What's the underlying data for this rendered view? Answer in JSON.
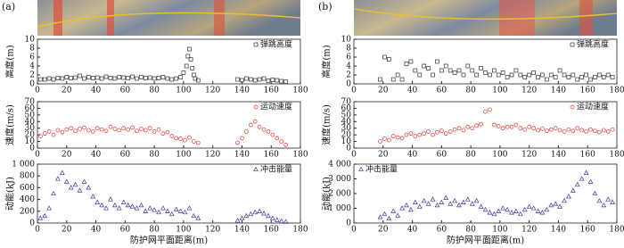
{
  "chart_data": [
    {
      "type": "scatter",
      "panel_label": "(a)",
      "ylabel": "高度(m)",
      "xlim": [
        0,
        180
      ],
      "xticks": [
        0,
        20,
        40,
        60,
        80,
        100,
        120,
        140,
        160,
        180
      ],
      "ylim": [
        0,
        10
      ],
      "yticks": [
        0,
        2,
        4,
        6,
        8,
        10
      ],
      "legend": "upper right",
      "series": [
        {
          "name": "弹跳高度",
          "color": "#333333",
          "marker": "square",
          "x": [
            2,
            5,
            8,
            11,
            14,
            17,
            20,
            23,
            26,
            29,
            32,
            35,
            38,
            41,
            44,
            47,
            50,
            53,
            56,
            59,
            62,
            65,
            68,
            71,
            74,
            77,
            80,
            83,
            86,
            89,
            92,
            95,
            98,
            100,
            102,
            103,
            104,
            105,
            106,
            107,
            108,
            110,
            137,
            140,
            143,
            146,
            149,
            152,
            155,
            158,
            161,
            164,
            167,
            170
          ],
          "y": [
            1,
            1,
            1.2,
            1,
            1.3,
            1.2,
            1.5,
            1.3,
            1.4,
            1.8,
            1.2,
            1.5,
            1.3,
            1.4,
            1.2,
            1.6,
            1.3,
            1.2,
            1.5,
            1.4,
            1.3,
            1.6,
            1.2,
            1.5,
            1.3,
            1.4,
            1.2,
            1.3,
            1.5,
            1.2,
            1.0,
            1.2,
            1.5,
            2.5,
            4,
            6.2,
            7.8,
            5.5,
            3.5,
            2,
            1.2,
            0.8,
            1,
            0.8,
            1.2,
            1,
            0.8,
            1,
            1.2,
            0.7,
            0.9,
            0.8,
            0.6,
            0.5
          ]
        }
      ]
    },
    {
      "type": "scatter",
      "ylabel": "速度(m/s)",
      "xlim": [
        0,
        180
      ],
      "xticks": [
        0,
        20,
        40,
        60,
        80,
        100,
        120,
        140,
        160,
        180
      ],
      "ylim": [
        0,
        70
      ],
      "yticks": [
        0,
        10,
        20,
        30,
        40,
        50,
        60,
        70
      ],
      "legend": "upper right",
      "series": [
        {
          "name": "运动速度",
          "color": "#e03030",
          "marker": "circle",
          "x": [
            2,
            5,
            8,
            11,
            14,
            17,
            20,
            23,
            26,
            29,
            32,
            35,
            38,
            41,
            44,
            47,
            50,
            53,
            56,
            59,
            62,
            65,
            68,
            71,
            74,
            77,
            80,
            83,
            86,
            89,
            92,
            95,
            98,
            101,
            104,
            107,
            110,
            137,
            140,
            143,
            146,
            149,
            152,
            155,
            158,
            161,
            164,
            167,
            170
          ],
          "y": [
            18,
            22,
            25,
            20,
            27,
            24,
            28,
            30,
            26,
            29,
            31,
            27,
            25,
            30,
            28,
            26,
            32,
            29,
            27,
            30,
            28,
            31,
            26,
            29,
            27,
            30,
            25,
            28,
            22,
            24,
            18,
            15,
            14,
            12,
            16,
            10,
            8,
            8,
            15,
            25,
            35,
            40,
            32,
            28,
            25,
            20,
            15,
            10,
            5
          ]
        }
      ]
    },
    {
      "type": "scatter",
      "ylabel": "动能(kJ)",
      "xlabel": "防护网平面距离(m)",
      "xlim": [
        0,
        180
      ],
      "xticks": [
        0,
        20,
        40,
        60,
        80,
        100,
        120,
        140,
        160,
        180
      ],
      "ylim": [
        0,
        1000
      ],
      "yticks": [
        0,
        200,
        400,
        600,
        800,
        {
          "value": 1000,
          "label": "1 000"
        }
      ],
      "legend": "upper right",
      "series": [
        {
          "name": "冲击能量",
          "color": "#3a3aa0",
          "marker": "triangle",
          "x": [
            2,
            5,
            8,
            11,
            14,
            17,
            20,
            23,
            26,
            29,
            32,
            35,
            38,
            41,
            44,
            47,
            50,
            53,
            56,
            59,
            62,
            65,
            68,
            71,
            74,
            77,
            80,
            83,
            86,
            89,
            92,
            95,
            98,
            101,
            104,
            107,
            110,
            137,
            140,
            143,
            146,
            149,
            152,
            155,
            158,
            161,
            164,
            167,
            170
          ],
          "y": [
            80,
            120,
            250,
            500,
            750,
            850,
            700,
            600,
            650,
            550,
            700,
            600,
            450,
            350,
            300,
            250,
            400,
            300,
            250,
            350,
            300,
            280,
            250,
            300,
            200,
            250,
            220,
            180,
            250,
            200,
            150,
            230,
            200,
            180,
            250,
            120,
            80,
            40,
            80,
            120,
            150,
            180,
            200,
            160,
            120,
            80,
            50,
            30,
            20
          ]
        }
      ]
    },
    {
      "type": "scatter",
      "panel_label": "(b)",
      "ylabel": "高度(m)",
      "xlim": [
        0,
        180
      ],
      "xticks": [
        0,
        20,
        40,
        60,
        80,
        100,
        120,
        140,
        160,
        180
      ],
      "ylim": [
        0,
        10
      ],
      "yticks": [
        0,
        2,
        4,
        6,
        8,
        10
      ],
      "legend": "upper right",
      "series": [
        {
          "name": "弹跳高度",
          "color": "#333333",
          "marker": "square",
          "x": [
            18,
            21,
            24,
            27,
            30,
            33,
            36,
            39,
            42,
            45,
            48,
            51,
            54,
            57,
            60,
            63,
            66,
            69,
            72,
            75,
            78,
            81,
            84,
            87,
            90,
            93,
            96,
            99,
            102,
            105,
            108,
            111,
            114,
            117,
            120,
            123,
            126,
            129,
            132,
            135,
            138,
            141,
            144,
            147,
            150,
            153,
            156,
            159,
            162,
            165,
            168,
            171,
            174,
            177
          ],
          "y": [
            1,
            6,
            5.5,
            1,
            2,
            1,
            4.5,
            5,
            3,
            2,
            4,
            3.5,
            2,
            5,
            3,
            4,
            3,
            2.5,
            3,
            2,
            4,
            3,
            2,
            3.5,
            2.5,
            2,
            3,
            2,
            2.5,
            1.5,
            2,
            3,
            2,
            1.5,
            2,
            2.5,
            1.5,
            2,
            1,
            2,
            1.5,
            3,
            2,
            1.5,
            2,
            1,
            1.5,
            2,
            1,
            1.5,
            2,
            1.5,
            2,
            1.5
          ]
        }
      ]
    },
    {
      "type": "scatter",
      "ylabel": "速度(m/s)",
      "xlim": [
        0,
        180
      ],
      "xticks": [
        0,
        20,
        40,
        60,
        80,
        100,
        120,
        140,
        160,
        180
      ],
      "ylim": [
        0,
        70
      ],
      "yticks": [
        0,
        10,
        20,
        30,
        40,
        50,
        60,
        70
      ],
      "legend": "upper right",
      "series": [
        {
          "name": "运动速度",
          "color": "#e03030",
          "marker": "circle",
          "x": [
            18,
            21,
            24,
            27,
            30,
            33,
            36,
            39,
            42,
            45,
            48,
            51,
            54,
            57,
            60,
            63,
            66,
            69,
            72,
            75,
            78,
            81,
            84,
            87,
            90,
            93,
            96,
            99,
            102,
            105,
            108,
            111,
            114,
            117,
            120,
            123,
            126,
            129,
            132,
            135,
            138,
            141,
            144,
            147,
            150,
            153,
            156,
            159,
            162,
            165,
            168,
            171,
            174,
            177
          ],
          "y": [
            10,
            14,
            12,
            18,
            16,
            15,
            20,
            22,
            18,
            20,
            22,
            25,
            20,
            24,
            26,
            22,
            25,
            28,
            30,
            27,
            32,
            30,
            34,
            36,
            55,
            58,
            35,
            33,
            30,
            32,
            32,
            35,
            30,
            28,
            32,
            30,
            27,
            29,
            26,
            28,
            30,
            27,
            25,
            28,
            26,
            30,
            27,
            25,
            28,
            26,
            24,
            27,
            25,
            28
          ]
        }
      ]
    },
    {
      "type": "scatter",
      "ylabel": "动能(kJ)",
      "xlabel": "防护网平面距离(m)",
      "xlim": [
        0,
        180
      ],
      "xticks": [
        0,
        20,
        40,
        60,
        80,
        100,
        120,
        140,
        160,
        180
      ],
      "ylim": [
        0,
        4000
      ],
      "yticks": [
        0,
        {
          "value": 1000,
          "label": "1 000"
        },
        {
          "value": 2000,
          "label": "2 000"
        },
        {
          "value": 3000,
          "label": "3 000"
        },
        {
          "value": 4000,
          "label": "4 000"
        }
      ],
      "legend": "upper left",
      "series": [
        {
          "name": "冲击能量",
          "color": "#3a3aa0",
          "marker": "triangle",
          "x": [
            18,
            21,
            24,
            27,
            30,
            33,
            36,
            39,
            42,
            45,
            48,
            51,
            54,
            57,
            60,
            63,
            66,
            69,
            72,
            75,
            78,
            81,
            84,
            87,
            90,
            93,
            96,
            99,
            102,
            105,
            108,
            111,
            114,
            117,
            120,
            123,
            126,
            129,
            132,
            135,
            138,
            141,
            144,
            147,
            150,
            153,
            156,
            159,
            162,
            165,
            168,
            171,
            174,
            177
          ],
          "y": [
            400,
            600,
            300,
            800,
            500,
            1000,
            1200,
            900,
            1400,
            1100,
            1500,
            1300,
            1600,
            1200,
            1400,
            1700,
            1300,
            1500,
            1200,
            1400,
            1600,
            1300,
            1500,
            1100,
            900,
            700,
            600,
            800,
            1000,
            900,
            700,
            800,
            600,
            900,
            1100,
            1000,
            800,
            700,
            900,
            1200,
            1300,
            1100,
            1500,
            1800,
            2200,
            2600,
            3000,
            3400,
            2800,
            2000,
            1500,
            1200,
            1600,
            1400
          ]
        }
      ]
    }
  ]
}
